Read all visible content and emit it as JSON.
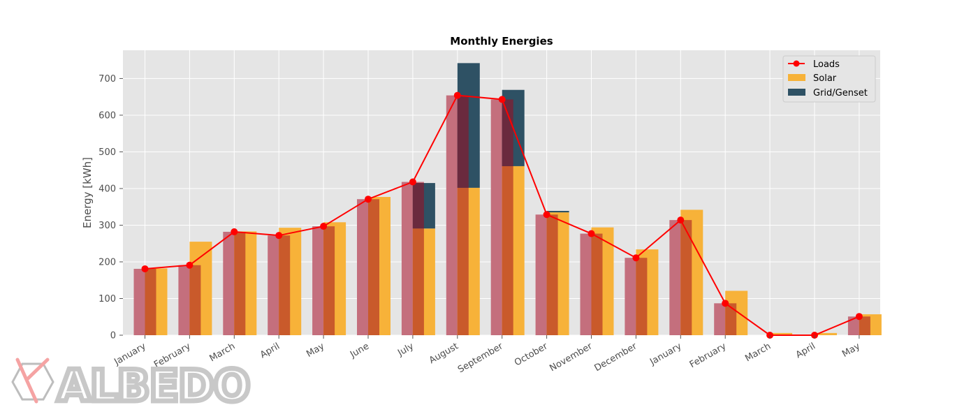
{
  "chart_data": {
    "type": "bar",
    "title": "Monthly Energies",
    "xlabel": "",
    "ylabel": "Energy [kWh]",
    "ylim": [
      0,
      777
    ],
    "yticks": [
      0,
      100,
      200,
      300,
      400,
      500,
      600,
      700
    ],
    "grid": true,
    "legend_position": "top-right",
    "categories": [
      "January",
      "February",
      "March",
      "April",
      "May",
      "June",
      "July",
      "August",
      "September",
      "October",
      "November",
      "December",
      "January",
      "February",
      "March",
      "April",
      "May"
    ],
    "series": [
      {
        "name": "Loads",
        "kind": "line",
        "color": "#ff0000",
        "values": [
          181,
          191,
          282,
          272,
          297,
          371,
          418,
          654,
          643,
          329,
          277,
          211,
          314,
          87,
          0,
          0,
          51
        ]
      },
      {
        "name": "Solar",
        "kind": "bar",
        "color": "#f7b239",
        "values": [
          182,
          255,
          283,
          293,
          308,
          377,
          291,
          402,
          461,
          335,
          294,
          234,
          342,
          121,
          6,
          6,
          57
        ]
      },
      {
        "name": "Grid/Genset",
        "kind": "bar",
        "color": "#2e5164",
        "values": [
          0,
          0,
          0,
          0,
          0,
          0,
          124,
          340,
          208,
          4,
          0,
          0,
          0,
          0,
          0,
          0,
          0
        ]
      },
      {
        "kind": "bar",
        "color": "#c46f7d",
        "values": [
          181,
          191,
          282,
          272,
          297,
          371,
          418,
          654,
          643,
          329,
          277,
          211,
          314,
          87,
          0,
          0,
          51
        ]
      }
    ]
  },
  "logo": {
    "text": "ALBEDO"
  }
}
